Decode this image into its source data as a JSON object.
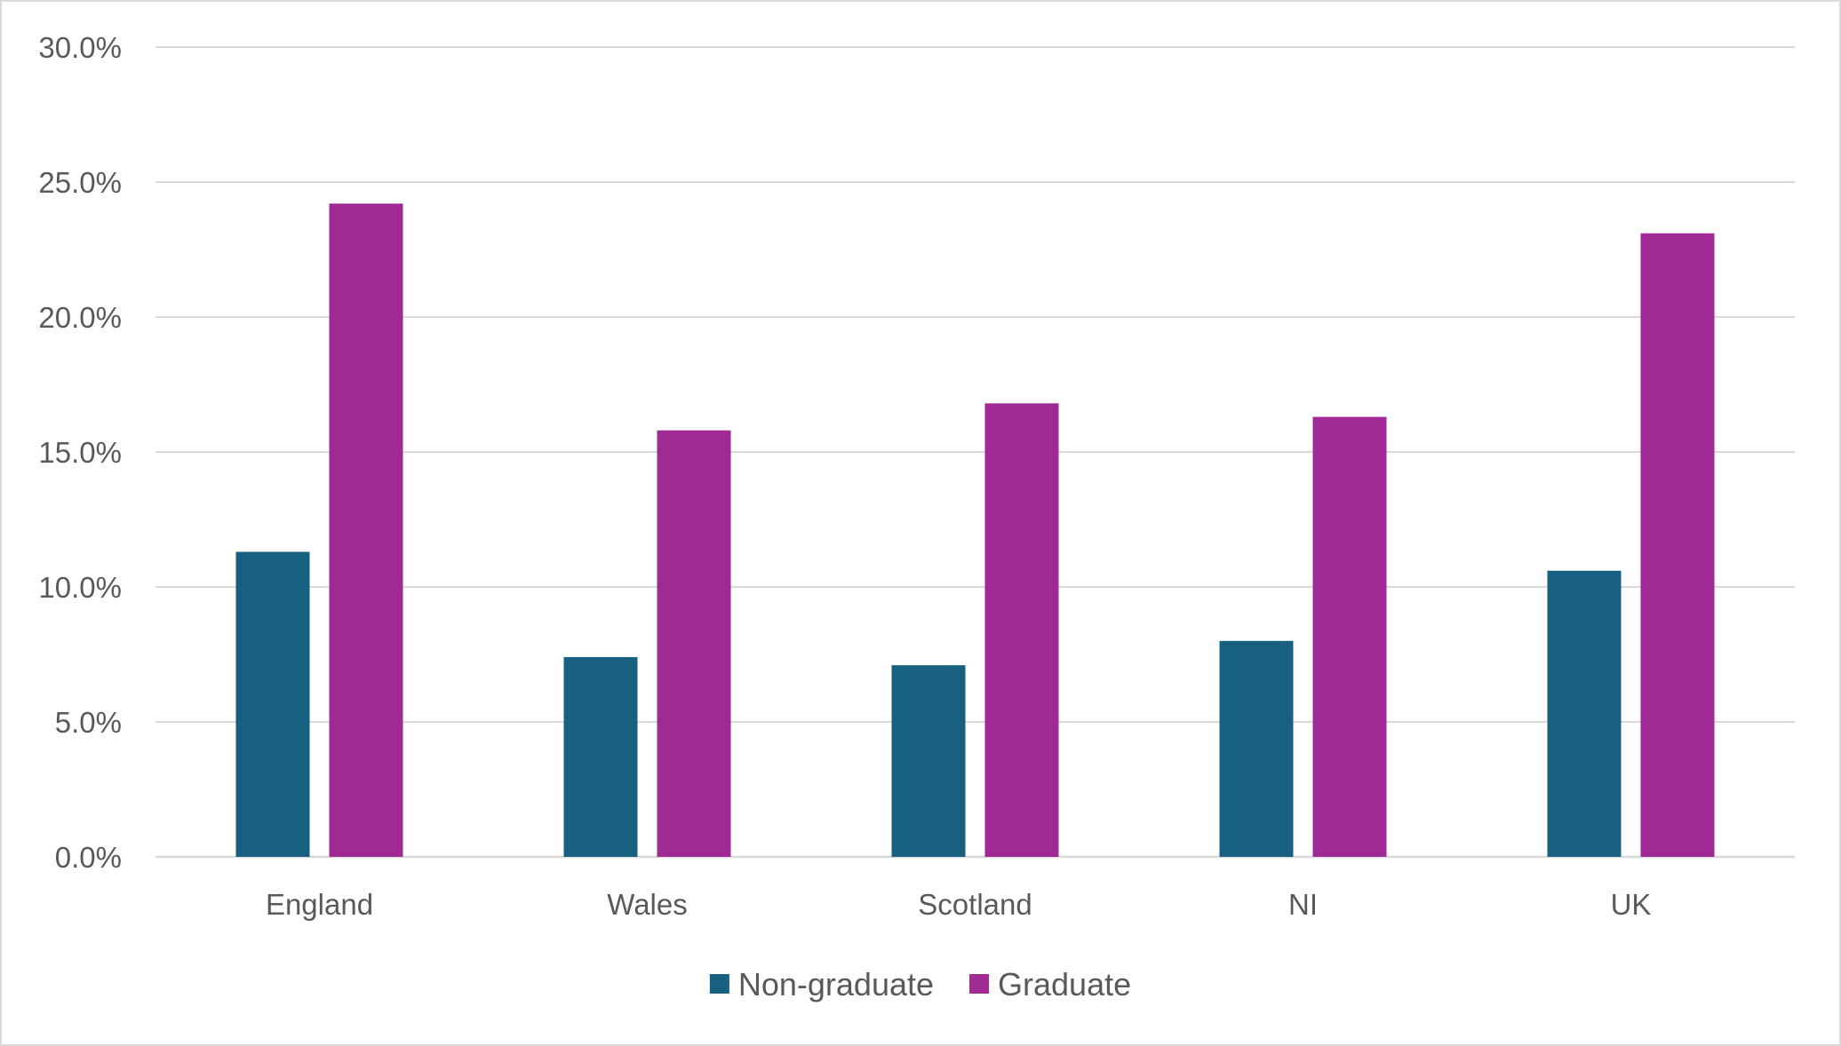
{
  "chart_data": {
    "type": "bar",
    "categories": [
      "England",
      "Wales",
      "Scotland",
      "NI",
      "UK"
    ],
    "series": [
      {
        "name": "Non-graduate",
        "color": "#17607f",
        "values": [
          11.3,
          7.4,
          7.1,
          8.0,
          10.6
        ]
      },
      {
        "name": "Graduate",
        "color": "#a02a93",
        "values": [
          24.2,
          15.8,
          16.8,
          16.3,
          23.1
        ]
      }
    ],
    "y_ticks": [
      "0.0%",
      "5.0%",
      "10.0%",
      "15.0%",
      "20.0%",
      "25.0%",
      "30.0%"
    ],
    "ylim": [
      0,
      30
    ],
    "grid": true,
    "legend_position": "bottom"
  }
}
